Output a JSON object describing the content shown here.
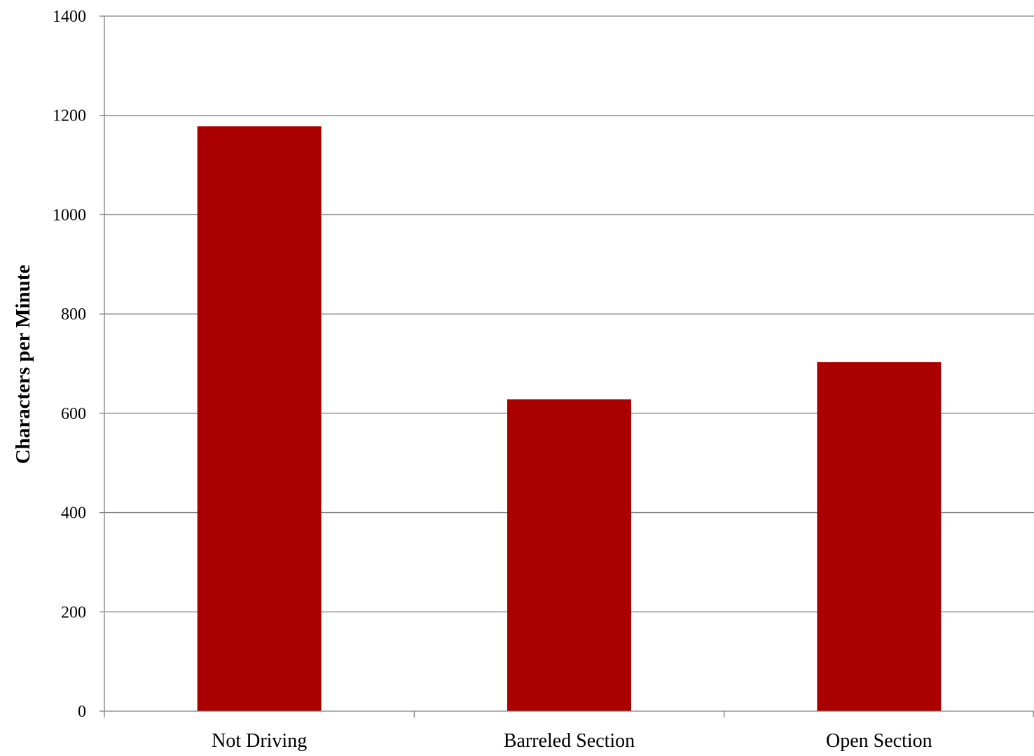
{
  "chart_data": {
    "type": "bar",
    "categories": [
      "Not Driving",
      "Barreled Section",
      "Open Section"
    ],
    "values": [
      1178,
      628,
      703
    ],
    "ylabel": "Characters per Minute",
    "xlabel": "",
    "ylim": [
      0,
      1400
    ],
    "yticks": [
      0,
      200,
      400,
      600,
      800,
      1000,
      1200,
      1400
    ],
    "ytick_labels": [
      "0",
      "200",
      "400",
      "600",
      "800",
      "1000",
      "1200",
      "1400"
    ],
    "grid": true,
    "legend": "none",
    "bar_color": "#aa0000",
    "gridline_color": "#808080",
    "axis_color": "#808080"
  }
}
